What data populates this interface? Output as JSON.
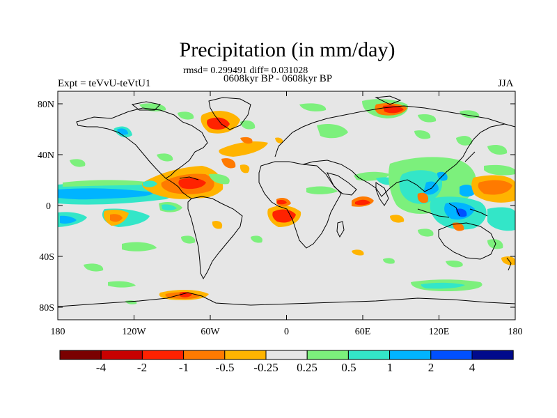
{
  "title": "Precipitation (in mm/day)",
  "stats": "rmsd= 0.299491 diff= 0.031028",
  "period": "0608kyr BP - 0608kyr BP",
  "experiment": "Expt = teVvU-teVtU1",
  "season": "JJA",
  "lat_labels": [
    "80N",
    "40N",
    "0",
    "40S",
    "80S"
  ],
  "lon_labels": [
    "180",
    "120W",
    "60W",
    "0",
    "60E",
    "120E",
    "180"
  ],
  "colorbar": {
    "colors": [
      "#7a0000",
      "#c80000",
      "#ff2200",
      "#ff7a00",
      "#ffb400",
      "#e6e6e6",
      "#7cf07c",
      "#33e6c8",
      "#00b4ff",
      "#0050ff",
      "#000a8c"
    ],
    "labels": [
      "-4",
      "-2",
      "-1",
      "-0.5",
      "-0.25",
      "0.25",
      "0.5",
      "1",
      "2",
      "4"
    ]
  },
  "colors": {
    "ocean_background": "#e6e6e6",
    "coastline": "#000000"
  }
}
